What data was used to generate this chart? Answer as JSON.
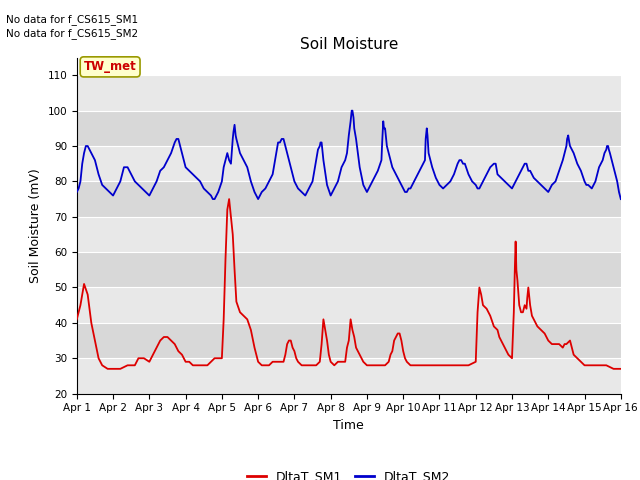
{
  "title": "Soil Moisture",
  "xlabel": "Time",
  "ylabel": "Soil Moisture (mV)",
  "ylim": [
    20,
    115
  ],
  "yticks": [
    20,
    30,
    40,
    50,
    60,
    70,
    80,
    90,
    100,
    110
  ],
  "text_lines": [
    "No data for f_CS615_SM1",
    "No data for f_CS615_SM2"
  ],
  "legend_label": "TW_met",
  "sm1_color": "#dd0000",
  "sm2_color": "#0000cc",
  "xtick_labels": [
    "Apr 1",
    "Apr 2",
    "Apr 3",
    "Apr 4",
    "Apr 5",
    "Apr 6",
    "Apr 7",
    "Apr 8",
    "Apr 9",
    "Apr 10",
    "Apr 11",
    "Apr 12",
    "Apr 13",
    "Apr 14",
    "Apr 15",
    "Apr 16"
  ],
  "band_colors": [
    "#e8e8e8",
    "#d8d8d8"
  ],
  "sm1_data": [
    [
      0.0,
      41
    ],
    [
      0.05,
      43
    ],
    [
      0.1,
      45
    ],
    [
      0.2,
      51
    ],
    [
      0.3,
      48
    ],
    [
      0.4,
      40
    ],
    [
      0.5,
      35
    ],
    [
      0.6,
      30
    ],
    [
      0.7,
      28
    ],
    [
      0.85,
      27
    ],
    [
      1.0,
      27
    ],
    [
      1.2,
      27
    ],
    [
      1.4,
      28
    ],
    [
      1.6,
      28
    ],
    [
      1.7,
      30
    ],
    [
      1.85,
      30
    ],
    [
      2.0,
      29
    ],
    [
      2.1,
      31
    ],
    [
      2.2,
      33
    ],
    [
      2.3,
      35
    ],
    [
      2.4,
      36
    ],
    [
      2.5,
      36
    ],
    [
      2.6,
      35
    ],
    [
      2.7,
      34
    ],
    [
      2.8,
      32
    ],
    [
      2.9,
      31
    ],
    [
      3.0,
      29
    ],
    [
      3.1,
      29
    ],
    [
      3.2,
      28
    ],
    [
      3.3,
      28
    ],
    [
      3.4,
      28
    ],
    [
      3.5,
      28
    ],
    [
      3.6,
      28
    ],
    [
      3.7,
      29
    ],
    [
      3.8,
      30
    ],
    [
      3.9,
      30
    ],
    [
      4.0,
      30
    ],
    [
      4.05,
      41
    ],
    [
      4.1,
      58
    ],
    [
      4.15,
      72
    ],
    [
      4.2,
      75
    ],
    [
      4.22,
      73
    ],
    [
      4.25,
      70
    ],
    [
      4.3,
      65
    ],
    [
      4.35,
      55
    ],
    [
      4.4,
      46
    ],
    [
      4.5,
      43
    ],
    [
      4.6,
      42
    ],
    [
      4.7,
      41
    ],
    [
      4.8,
      38
    ],
    [
      4.9,
      33
    ],
    [
      5.0,
      29
    ],
    [
      5.1,
      28
    ],
    [
      5.2,
      28
    ],
    [
      5.3,
      28
    ],
    [
      5.4,
      29
    ],
    [
      5.5,
      29
    ],
    [
      5.6,
      29
    ],
    [
      5.7,
      29
    ],
    [
      5.75,
      31
    ],
    [
      5.8,
      34
    ],
    [
      5.85,
      35
    ],
    [
      5.9,
      35
    ],
    [
      5.95,
      33
    ],
    [
      6.0,
      32
    ],
    [
      6.05,
      30
    ],
    [
      6.1,
      29
    ],
    [
      6.2,
      28
    ],
    [
      6.3,
      28
    ],
    [
      6.4,
      28
    ],
    [
      6.5,
      28
    ],
    [
      6.6,
      28
    ],
    [
      6.7,
      29
    ],
    [
      6.75,
      34
    ],
    [
      6.8,
      41
    ],
    [
      6.85,
      38
    ],
    [
      6.9,
      35
    ],
    [
      6.95,
      31
    ],
    [
      7.0,
      29
    ],
    [
      7.1,
      28
    ],
    [
      7.2,
      29
    ],
    [
      7.3,
      29
    ],
    [
      7.4,
      29
    ],
    [
      7.45,
      33
    ],
    [
      7.5,
      35
    ],
    [
      7.55,
      41
    ],
    [
      7.6,
      38
    ],
    [
      7.65,
      36
    ],
    [
      7.7,
      33
    ],
    [
      7.8,
      31
    ],
    [
      7.9,
      29
    ],
    [
      8.0,
      28
    ],
    [
      8.1,
      28
    ],
    [
      8.2,
      28
    ],
    [
      8.3,
      28
    ],
    [
      8.4,
      28
    ],
    [
      8.5,
      28
    ],
    [
      8.6,
      29
    ],
    [
      8.65,
      31
    ],
    [
      8.7,
      32
    ],
    [
      8.75,
      35
    ],
    [
      8.8,
      36
    ],
    [
      8.85,
      37
    ],
    [
      8.9,
      37
    ],
    [
      8.95,
      35
    ],
    [
      9.0,
      32
    ],
    [
      9.05,
      30
    ],
    [
      9.1,
      29
    ],
    [
      9.2,
      28
    ],
    [
      9.4,
      28
    ],
    [
      9.6,
      28
    ],
    [
      9.7,
      28
    ],
    [
      9.8,
      28
    ],
    [
      10.0,
      28
    ],
    [
      10.2,
      28
    ],
    [
      10.4,
      28
    ],
    [
      10.6,
      28
    ],
    [
      10.8,
      28
    ],
    [
      11.0,
      29
    ],
    [
      11.05,
      43
    ],
    [
      11.1,
      50
    ],
    [
      11.15,
      48
    ],
    [
      11.2,
      45
    ],
    [
      11.3,
      44
    ],
    [
      11.4,
      42
    ],
    [
      11.5,
      39
    ],
    [
      11.6,
      38
    ],
    [
      11.65,
      36
    ],
    [
      11.7,
      35
    ],
    [
      11.8,
      33
    ],
    [
      11.9,
      31
    ],
    [
      12.0,
      30
    ],
    [
      12.05,
      43
    ],
    [
      12.08,
      56
    ],
    [
      12.1,
      63
    ],
    [
      12.12,
      55
    ],
    [
      12.15,
      52
    ],
    [
      12.2,
      45
    ],
    [
      12.25,
      43
    ],
    [
      12.3,
      43
    ],
    [
      12.35,
      45
    ],
    [
      12.4,
      44
    ],
    [
      12.42,
      47
    ],
    [
      12.45,
      50
    ],
    [
      12.48,
      47
    ],
    [
      12.5,
      45
    ],
    [
      12.55,
      42
    ],
    [
      12.6,
      41
    ],
    [
      12.7,
      39
    ],
    [
      12.8,
      38
    ],
    [
      12.9,
      37
    ],
    [
      13.0,
      35
    ],
    [
      13.1,
      34
    ],
    [
      13.2,
      34
    ],
    [
      13.3,
      34
    ],
    [
      13.4,
      33
    ],
    [
      13.45,
      34
    ],
    [
      13.5,
      34
    ],
    [
      13.6,
      35
    ],
    [
      13.65,
      33
    ],
    [
      13.7,
      31
    ],
    [
      13.8,
      30
    ],
    [
      13.9,
      29
    ],
    [
      14.0,
      28
    ],
    [
      14.2,
      28
    ],
    [
      14.4,
      28
    ],
    [
      14.6,
      28
    ],
    [
      14.8,
      27
    ],
    [
      15.0,
      27
    ]
  ],
  "sm2_data": [
    [
      0.0,
      77
    ],
    [
      0.05,
      78
    ],
    [
      0.1,
      80
    ],
    [
      0.15,
      85
    ],
    [
      0.2,
      88
    ],
    [
      0.25,
      90
    ],
    [
      0.3,
      90
    ],
    [
      0.4,
      88
    ],
    [
      0.5,
      86
    ],
    [
      0.6,
      82
    ],
    [
      0.7,
      79
    ],
    [
      0.8,
      78
    ],
    [
      0.9,
      77
    ],
    [
      1.0,
      76
    ],
    [
      1.05,
      77
    ],
    [
      1.1,
      78
    ],
    [
      1.2,
      80
    ],
    [
      1.3,
      84
    ],
    [
      1.4,
      84
    ],
    [
      1.5,
      82
    ],
    [
      1.6,
      80
    ],
    [
      1.7,
      79
    ],
    [
      1.8,
      78
    ],
    [
      1.9,
      77
    ],
    [
      2.0,
      76
    ],
    [
      2.1,
      78
    ],
    [
      2.2,
      80
    ],
    [
      2.3,
      83
    ],
    [
      2.4,
      84
    ],
    [
      2.5,
      86
    ],
    [
      2.6,
      88
    ],
    [
      2.7,
      91
    ],
    [
      2.75,
      92
    ],
    [
      2.8,
      92
    ],
    [
      2.9,
      88
    ],
    [
      3.0,
      84
    ],
    [
      3.1,
      83
    ],
    [
      3.2,
      82
    ],
    [
      3.3,
      81
    ],
    [
      3.4,
      80
    ],
    [
      3.5,
      78
    ],
    [
      3.6,
      77
    ],
    [
      3.7,
      76
    ],
    [
      3.75,
      75
    ],
    [
      3.8,
      75
    ],
    [
      3.85,
      76
    ],
    [
      3.9,
      77
    ],
    [
      4.0,
      80
    ],
    [
      4.05,
      84
    ],
    [
      4.1,
      86
    ],
    [
      4.15,
      88
    ],
    [
      4.2,
      86
    ],
    [
      4.25,
      85
    ],
    [
      4.3,
      92
    ],
    [
      4.32,
      94
    ],
    [
      4.35,
      96
    ],
    [
      4.38,
      93
    ],
    [
      4.4,
      92
    ],
    [
      4.5,
      88
    ],
    [
      4.6,
      86
    ],
    [
      4.7,
      84
    ],
    [
      4.8,
      80
    ],
    [
      4.9,
      77
    ],
    [
      5.0,
      75
    ],
    [
      5.05,
      76
    ],
    [
      5.1,
      77
    ],
    [
      5.2,
      78
    ],
    [
      5.3,
      80
    ],
    [
      5.4,
      82
    ],
    [
      5.5,
      88
    ],
    [
      5.55,
      91
    ],
    [
      5.6,
      91
    ],
    [
      5.65,
      92
    ],
    [
      5.7,
      92
    ],
    [
      5.75,
      90
    ],
    [
      5.8,
      88
    ],
    [
      5.9,
      84
    ],
    [
      6.0,
      80
    ],
    [
      6.1,
      78
    ],
    [
      6.2,
      77
    ],
    [
      6.3,
      76
    ],
    [
      6.35,
      77
    ],
    [
      6.4,
      78
    ],
    [
      6.5,
      80
    ],
    [
      6.55,
      83
    ],
    [
      6.6,
      86
    ],
    [
      6.65,
      89
    ],
    [
      6.7,
      90
    ],
    [
      6.72,
      91
    ],
    [
      6.75,
      91
    ],
    [
      6.78,
      88
    ],
    [
      6.8,
      86
    ],
    [
      6.9,
      79
    ],
    [
      7.0,
      76
    ],
    [
      7.05,
      77
    ],
    [
      7.1,
      78
    ],
    [
      7.2,
      80
    ],
    [
      7.3,
      84
    ],
    [
      7.4,
      86
    ],
    [
      7.45,
      88
    ],
    [
      7.5,
      93
    ],
    [
      7.55,
      97
    ],
    [
      7.58,
      100
    ],
    [
      7.6,
      100
    ],
    [
      7.63,
      98
    ],
    [
      7.65,
      95
    ],
    [
      7.7,
      92
    ],
    [
      7.8,
      84
    ],
    [
      7.9,
      79
    ],
    [
      8.0,
      77
    ],
    [
      8.1,
      79
    ],
    [
      8.2,
      81
    ],
    [
      8.3,
      83
    ],
    [
      8.4,
      86
    ],
    [
      8.42,
      91
    ],
    [
      8.44,
      95
    ],
    [
      8.45,
      97
    ],
    [
      8.47,
      95
    ],
    [
      8.5,
      95
    ],
    [
      8.55,
      90
    ],
    [
      8.6,
      88
    ],
    [
      8.7,
      84
    ],
    [
      8.8,
      82
    ],
    [
      8.9,
      80
    ],
    [
      9.0,
      78
    ],
    [
      9.05,
      77
    ],
    [
      9.1,
      77
    ],
    [
      9.15,
      78
    ],
    [
      9.2,
      78
    ],
    [
      9.3,
      80
    ],
    [
      9.4,
      82
    ],
    [
      9.5,
      84
    ],
    [
      9.6,
      86
    ],
    [
      9.62,
      92
    ],
    [
      9.65,
      95
    ],
    [
      9.67,
      93
    ],
    [
      9.7,
      88
    ],
    [
      9.8,
      84
    ],
    [
      9.9,
      81
    ],
    [
      10.0,
      79
    ],
    [
      10.1,
      78
    ],
    [
      10.2,
      79
    ],
    [
      10.3,
      80
    ],
    [
      10.4,
      82
    ],
    [
      10.5,
      85
    ],
    [
      10.55,
      86
    ],
    [
      10.6,
      86
    ],
    [
      10.65,
      85
    ],
    [
      10.7,
      85
    ],
    [
      10.8,
      82
    ],
    [
      10.9,
      80
    ],
    [
      11.0,
      79
    ],
    [
      11.05,
      78
    ],
    [
      11.1,
      78
    ],
    [
      11.2,
      80
    ],
    [
      11.3,
      82
    ],
    [
      11.4,
      84
    ],
    [
      11.5,
      85
    ],
    [
      11.55,
      85
    ],
    [
      11.6,
      82
    ],
    [
      11.7,
      81
    ],
    [
      11.8,
      80
    ],
    [
      11.9,
      79
    ],
    [
      12.0,
      78
    ],
    [
      12.05,
      79
    ],
    [
      12.1,
      80
    ],
    [
      12.2,
      82
    ],
    [
      12.3,
      84
    ],
    [
      12.35,
      85
    ],
    [
      12.4,
      85
    ],
    [
      12.45,
      83
    ],
    [
      12.5,
      83
    ],
    [
      12.6,
      81
    ],
    [
      12.7,
      80
    ],
    [
      12.8,
      79
    ],
    [
      12.9,
      78
    ],
    [
      13.0,
      77
    ],
    [
      13.05,
      78
    ],
    [
      13.1,
      79
    ],
    [
      13.2,
      80
    ],
    [
      13.3,
      83
    ],
    [
      13.4,
      86
    ],
    [
      13.45,
      88
    ],
    [
      13.5,
      90
    ],
    [
      13.52,
      92
    ],
    [
      13.55,
      93
    ],
    [
      13.58,
      91
    ],
    [
      13.6,
      90
    ],
    [
      13.7,
      88
    ],
    [
      13.8,
      85
    ],
    [
      13.9,
      83
    ],
    [
      14.0,
      80
    ],
    [
      14.05,
      79
    ],
    [
      14.1,
      79
    ],
    [
      14.2,
      78
    ],
    [
      14.25,
      79
    ],
    [
      14.3,
      80
    ],
    [
      14.4,
      84
    ],
    [
      14.5,
      86
    ],
    [
      14.55,
      88
    ],
    [
      14.6,
      89
    ],
    [
      14.62,
      90
    ],
    [
      14.65,
      90
    ],
    [
      14.67,
      89
    ],
    [
      14.7,
      88
    ],
    [
      14.8,
      84
    ],
    [
      14.9,
      80
    ],
    [
      14.95,
      77
    ],
    [
      15.0,
      75
    ]
  ]
}
